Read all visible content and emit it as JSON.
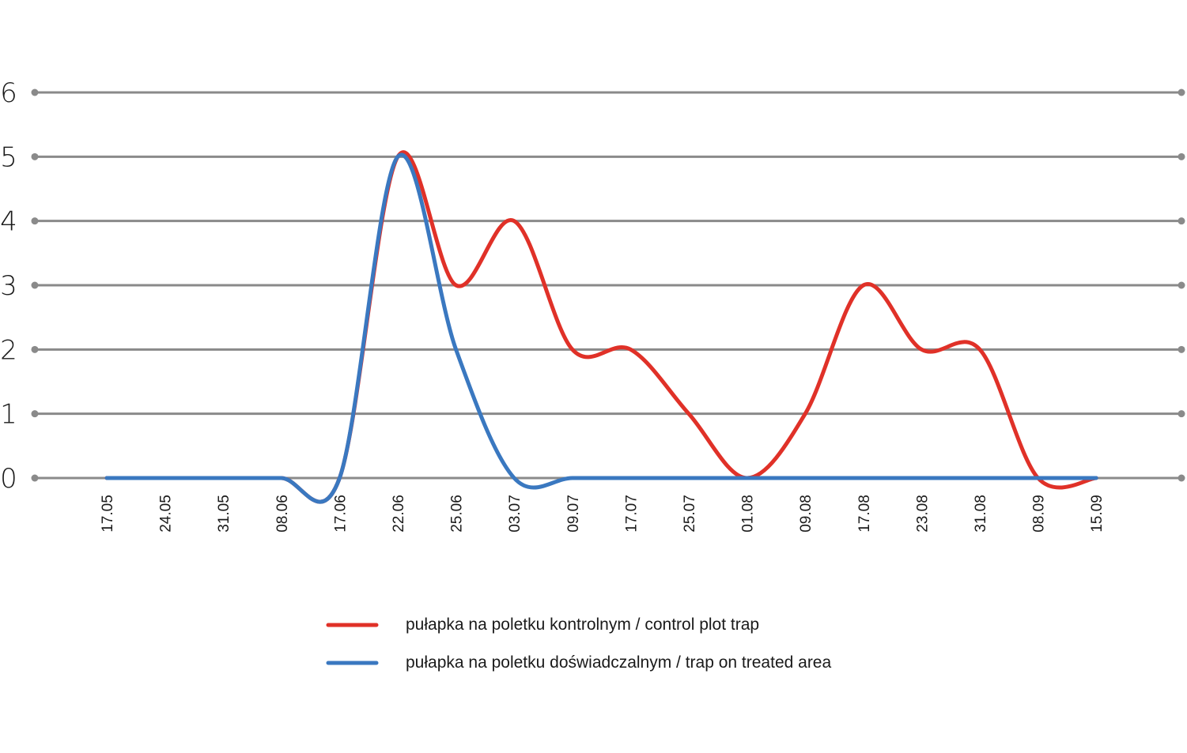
{
  "chart_data": {
    "type": "line",
    "title": "",
    "xlabel": "",
    "ylabel": "",
    "ylim": [
      0,
      6
    ],
    "yticks": [
      "0",
      "1",
      "2",
      "3",
      "4",
      "5",
      "6"
    ],
    "categories": [
      "17.05",
      "24.05",
      "31.05",
      "08.06",
      "17.06",
      "22.06",
      "25.06",
      "03.07",
      "09.07",
      "17.07",
      "25.07",
      "01.08",
      "09.08",
      "17.08",
      "23.08",
      "31.08",
      "08.09",
      "15.09"
    ],
    "series": [
      {
        "name": "pułapka na poletku kontrolnym / control plot trap",
        "color": "#e03128",
        "values": [
          0,
          0,
          0,
          0,
          0,
          5,
          3,
          4,
          2,
          2,
          1,
          0,
          1,
          3,
          2,
          2,
          0,
          0
        ]
      },
      {
        "name": "pułapka na poletku doświadczalnym / trap on treated area",
        "color": "#3a78c0",
        "values": [
          0,
          0,
          0,
          0,
          0,
          5,
          2,
          0,
          0,
          0,
          0,
          0,
          0,
          0,
          0,
          0,
          0,
          0
        ]
      }
    ],
    "grid": true,
    "grid_color": "#8a8a8a",
    "legend_position": "bottom"
  }
}
